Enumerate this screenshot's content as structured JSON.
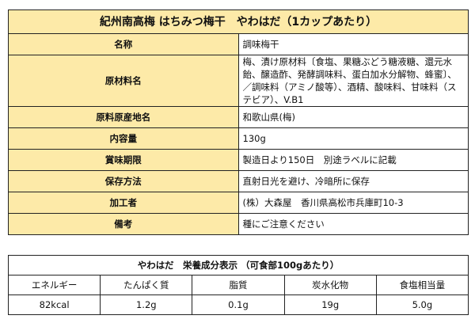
{
  "product_table": {
    "title": "紀州南高梅 はちみつ梅干　やわはだ（1カップあたり）",
    "rows": [
      {
        "label": "名称",
        "value": "調味梅干"
      },
      {
        "label": "原材料名",
        "value": "梅、漬け原材料〔食塩、果糖ぶどう糖液糖、還元水飴、醸造酢、発酵調味料、蛋白加水分解物、蜂蜜〕、／調味料（アミノ酸等）、酒精、酸味料、甘味料（ステビア）、V.B1"
      },
      {
        "label": "原料原産地名",
        "value": "和歌山県(梅)"
      },
      {
        "label": "内容量",
        "value": "130g"
      },
      {
        "label": "賞味期限",
        "value": "製造日より150日　別途ラベルに記載"
      },
      {
        "label": "保存方法",
        "value": "直射日光を避け、冷暗所に保存"
      },
      {
        "label": "加工者",
        "value": "(株）大森屋　香川県高松市兵庫町10-3"
      },
      {
        "label": "備考",
        "value": "種にご注意ください"
      }
    ]
  },
  "nutrition_table": {
    "title": "やわはだ　栄養成分表示 （可食部100gあたり）",
    "headers": [
      "エネルギー",
      "たんぱく質",
      "脂質",
      "炭水化物",
      "食塩相当量"
    ],
    "values": [
      "82kcal",
      "1.2g",
      "0.1g",
      "19g",
      "5.0g"
    ]
  },
  "colors": {
    "label_fill": "#fdeaa8",
    "border": "#222222"
  }
}
